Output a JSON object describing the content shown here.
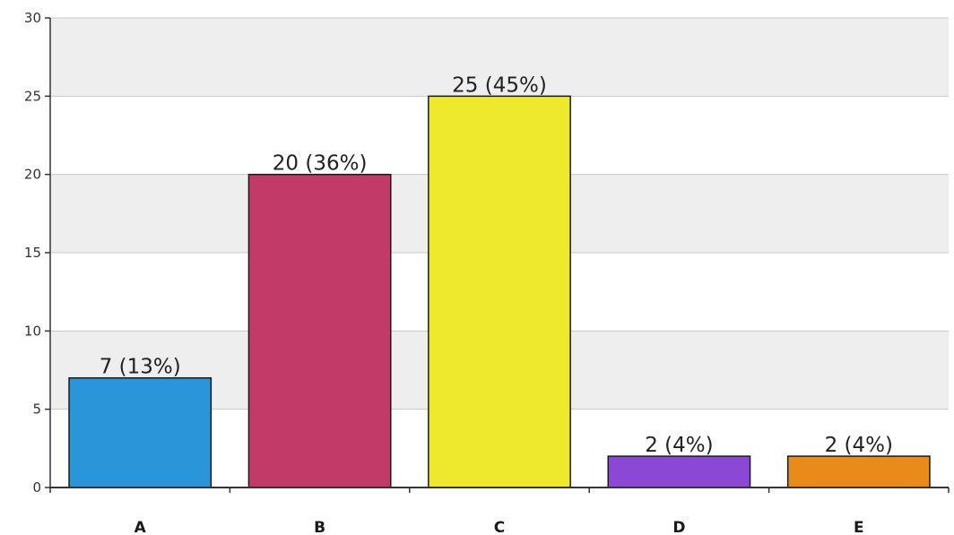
{
  "chart_data": {
    "type": "bar",
    "categories": [
      "A",
      "B",
      "C",
      "D",
      "E"
    ],
    "values": [
      7,
      20,
      25,
      2,
      2
    ],
    "data_labels": [
      "7 (13%)",
      "20 (36%)",
      "25 (45%)",
      "2 (4%)",
      "2 (4%)"
    ],
    "colors": [
      "#2b95d9",
      "#c23a68",
      "#efe92d",
      "#8a48d4",
      "#e88b1a"
    ],
    "ylim": [
      0,
      30
    ],
    "yticks": [
      0,
      5,
      10,
      15,
      20,
      25,
      30
    ],
    "grid": true,
    "legend": "none",
    "background_band_color": "#eeeeee"
  }
}
